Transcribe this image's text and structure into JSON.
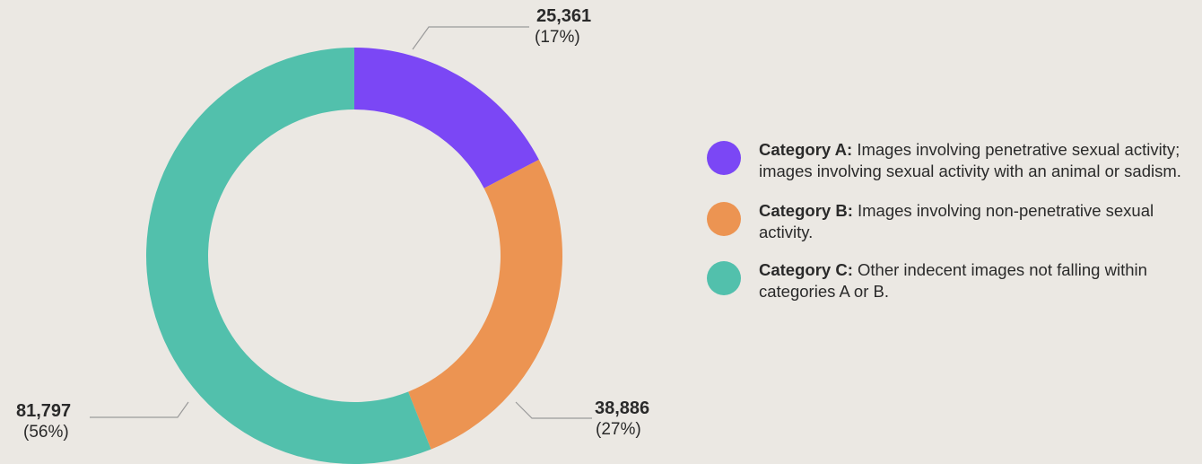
{
  "chart_data": {
    "type": "pie",
    "donut": true,
    "categories": [
      "Category A",
      "Category B",
      "Category C"
    ],
    "values": [
      25361,
      38886,
      81797
    ],
    "percent_labels": [
      "(17%)",
      "(27%)",
      "(56%)"
    ],
    "value_labels": [
      "25,361",
      "38,886",
      "81,797"
    ],
    "colors": [
      "#7b47f5",
      "#ec9452",
      "#52c0ac"
    ],
    "legend_placement": "right",
    "legend": [
      {
        "name": "Category A:",
        "description": "Images involving penetrative sexual activity; images involving sexual activity with an animal or sadism.",
        "color": "#7b47f5"
      },
      {
        "name": "Category B:",
        "description": "Images involving non-penetrative sexual activity.",
        "color": "#ec9452"
      },
      {
        "name": "Category C:",
        "description": "Other indecent images not falling within categories A or B.",
        "color": "#52c0ac"
      }
    ]
  }
}
